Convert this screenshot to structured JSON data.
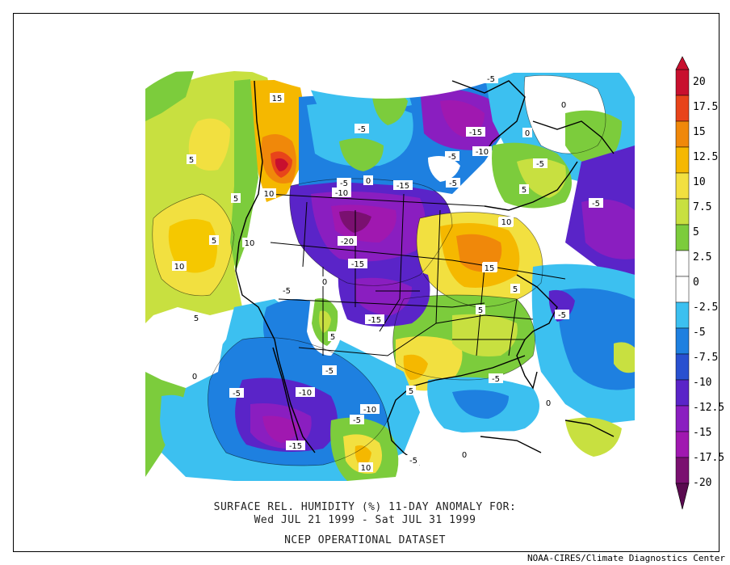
{
  "caption": {
    "line1": "SURFACE REL. HUMIDITY (%)   11-DAY ANOMALY FOR:",
    "line2": "Wed JUL 21 1999 - Sat JUL 31 1999",
    "line3": "NCEP OPERATIONAL DATASET"
  },
  "credit": "NOAA-CIRES/Climate Diagnostics Center",
  "colorbar": {
    "levels": [
      "20",
      "17.5",
      "15",
      "12.5",
      "10",
      "7.5",
      "5",
      "2.5",
      "0",
      "-2.5",
      "-5",
      "-7.5",
      "-10",
      "-12.5",
      "-15",
      "-17.5",
      "-20"
    ],
    "colors": [
      "#c8102e",
      "#e8441a",
      "#f0880a",
      "#f5b800",
      "#f2e040",
      "#c8e040",
      "#7ccc3c",
      "#ffffff",
      "#ffffff",
      "#3cc0f0",
      "#1e80e0",
      "#2850d0",
      "#5a24c8",
      "#8a1ec0",
      "#a018b0",
      "#7a1070"
    ]
  },
  "contour_labels": [
    "15",
    "5",
    "5",
    "5",
    "10",
    "10",
    "10",
    "5",
    "10",
    "-5",
    "-5",
    "0",
    "-10",
    "-15",
    "-5",
    "-15",
    "-10",
    "-5",
    "0",
    "5",
    "-5",
    "0",
    "-20",
    "-15",
    "-5",
    "0",
    "5",
    "-15",
    "-5",
    "-10",
    "-5",
    "-10",
    "-5",
    "-15",
    "10",
    "-5",
    "0",
    "10",
    "10",
    "15",
    "5",
    "-5",
    "5",
    "-5",
    "0",
    "0",
    "-5",
    "-5",
    "10",
    "5"
  ]
}
